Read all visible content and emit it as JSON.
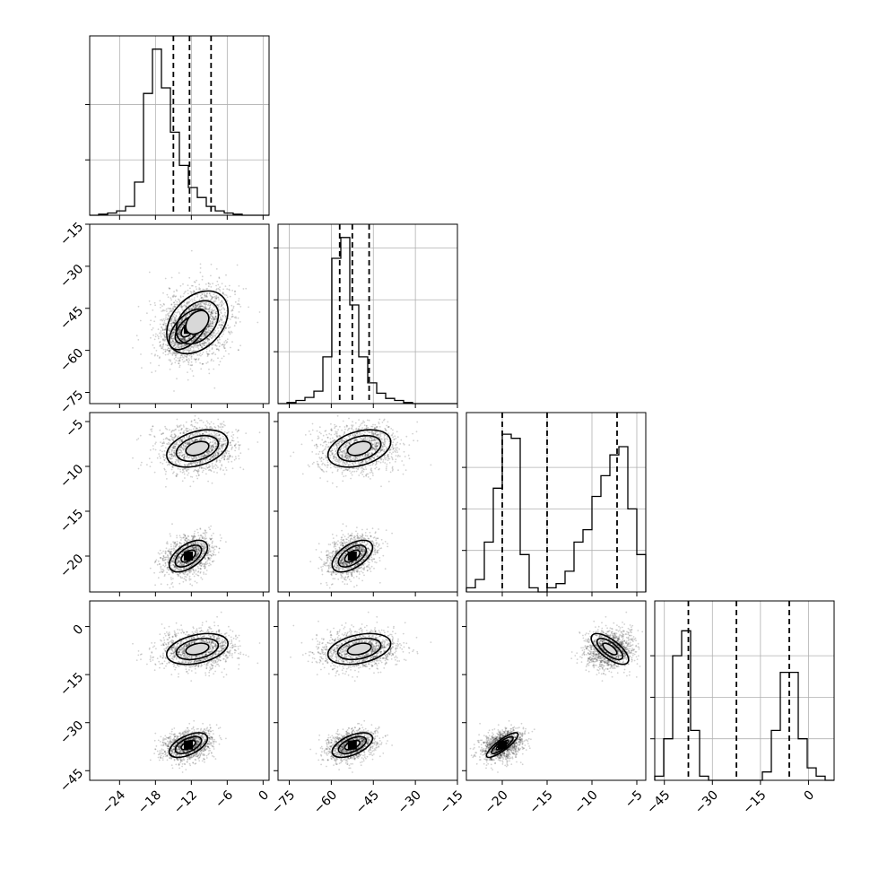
{
  "chart_data": {
    "type": "scatter",
    "subtype": "corner-plot",
    "title": "",
    "axis_labels": [
      "",
      "",
      "",
      ""
    ],
    "grid": true,
    "colors": {
      "hist": "#000000",
      "points": "#000000",
      "grid": "#b0b0b0"
    },
    "axes": [
      {
        "index": 0,
        "range": [
          -29,
          1
        ],
        "ticks": [
          -24,
          -18,
          -12,
          -6,
          0
        ],
        "tick_labels": [
          "−24",
          "−18",
          "−12",
          "−6",
          "0"
        ],
        "histogram": {
          "bins_start": -29,
          "bin_width": 1.5,
          "counts": [
            0,
            1,
            2,
            4,
            8,
            30,
            110,
            150,
            115,
            75,
            45,
            25,
            16,
            8,
            4,
            2,
            1,
            0,
            0,
            0
          ],
          "hist_ticks": [
            50,
            100
          ],
          "max_count": 150
        },
        "quantiles": [
          -15.0,
          -12.3,
          -8.7
        ]
      },
      {
        "index": 1,
        "range": [
          -79,
          -15
        ],
        "ticks": [
          -75,
          -60,
          -45,
          -30,
          -15
        ],
        "tick_labels": [
          "−75",
          "−60",
          "−45",
          "−30",
          "−15"
        ],
        "histogram": {
          "bins_start": -79,
          "bin_width": 3.2,
          "counts": [
            0,
            1,
            3,
            6,
            12,
            45,
            140,
            160,
            95,
            45,
            20,
            10,
            5,
            3,
            1,
            0,
            0,
            0,
            0,
            0
          ],
          "hist_ticks": [
            50,
            100,
            150
          ],
          "max_count": 160
        },
        "quantiles": [
          -57.0,
          -52.5,
          -46.5
        ]
      },
      {
        "index": 2,
        "range": [
          -24,
          -4
        ],
        "ticks": [
          -20,
          -15,
          -10,
          -5
        ],
        "tick_labels": [
          "−20",
          "−15",
          "−10",
          "−5"
        ],
        "histogram": {
          "bins_start": -24,
          "bin_width": 1.0,
          "counts": [
            1,
            3,
            12,
            25,
            38,
            37,
            9,
            1,
            0,
            1,
            2,
            5,
            12,
            15,
            23,
            28,
            33,
            35,
            20,
            9
          ],
          "hist_ticks": [
            10,
            20,
            30
          ],
          "max_count": 40
        },
        "quantiles": [
          -20.0,
          -15.0,
          -7.2
        ]
      },
      {
        "index": 3,
        "range": [
          -48,
          8
        ],
        "ticks": [
          -45,
          -30,
          -15,
          0
        ],
        "tick_labels": [
          "−45",
          "−30",
          "−15",
          "0"
        ],
        "histogram": {
          "bins_start": -48,
          "bin_width": 2.8,
          "counts": [
            1,
            10,
            30,
            36,
            12,
            1,
            0,
            0,
            0,
            0,
            0,
            0,
            2,
            12,
            26,
            26,
            10,
            3,
            1,
            0
          ],
          "hist_ticks": [
            10,
            20,
            30
          ],
          "max_count": 40
        },
        "quantiles": [
          -37.5,
          -22.5,
          -6.0
        ]
      }
    ],
    "modes": [
      {
        "center": [
          -12.5,
          -52.5,
          -20.0,
          -37.0
        ],
        "sd": [
          2.0,
          4.5,
          1.1,
          2.4
        ]
      },
      {
        "center": [
          -11.0,
          -50.0,
          -8.0,
          -7.0
        ],
        "sd": [
          3.2,
          7.0,
          1.3,
          3.0
        ]
      }
    ]
  }
}
